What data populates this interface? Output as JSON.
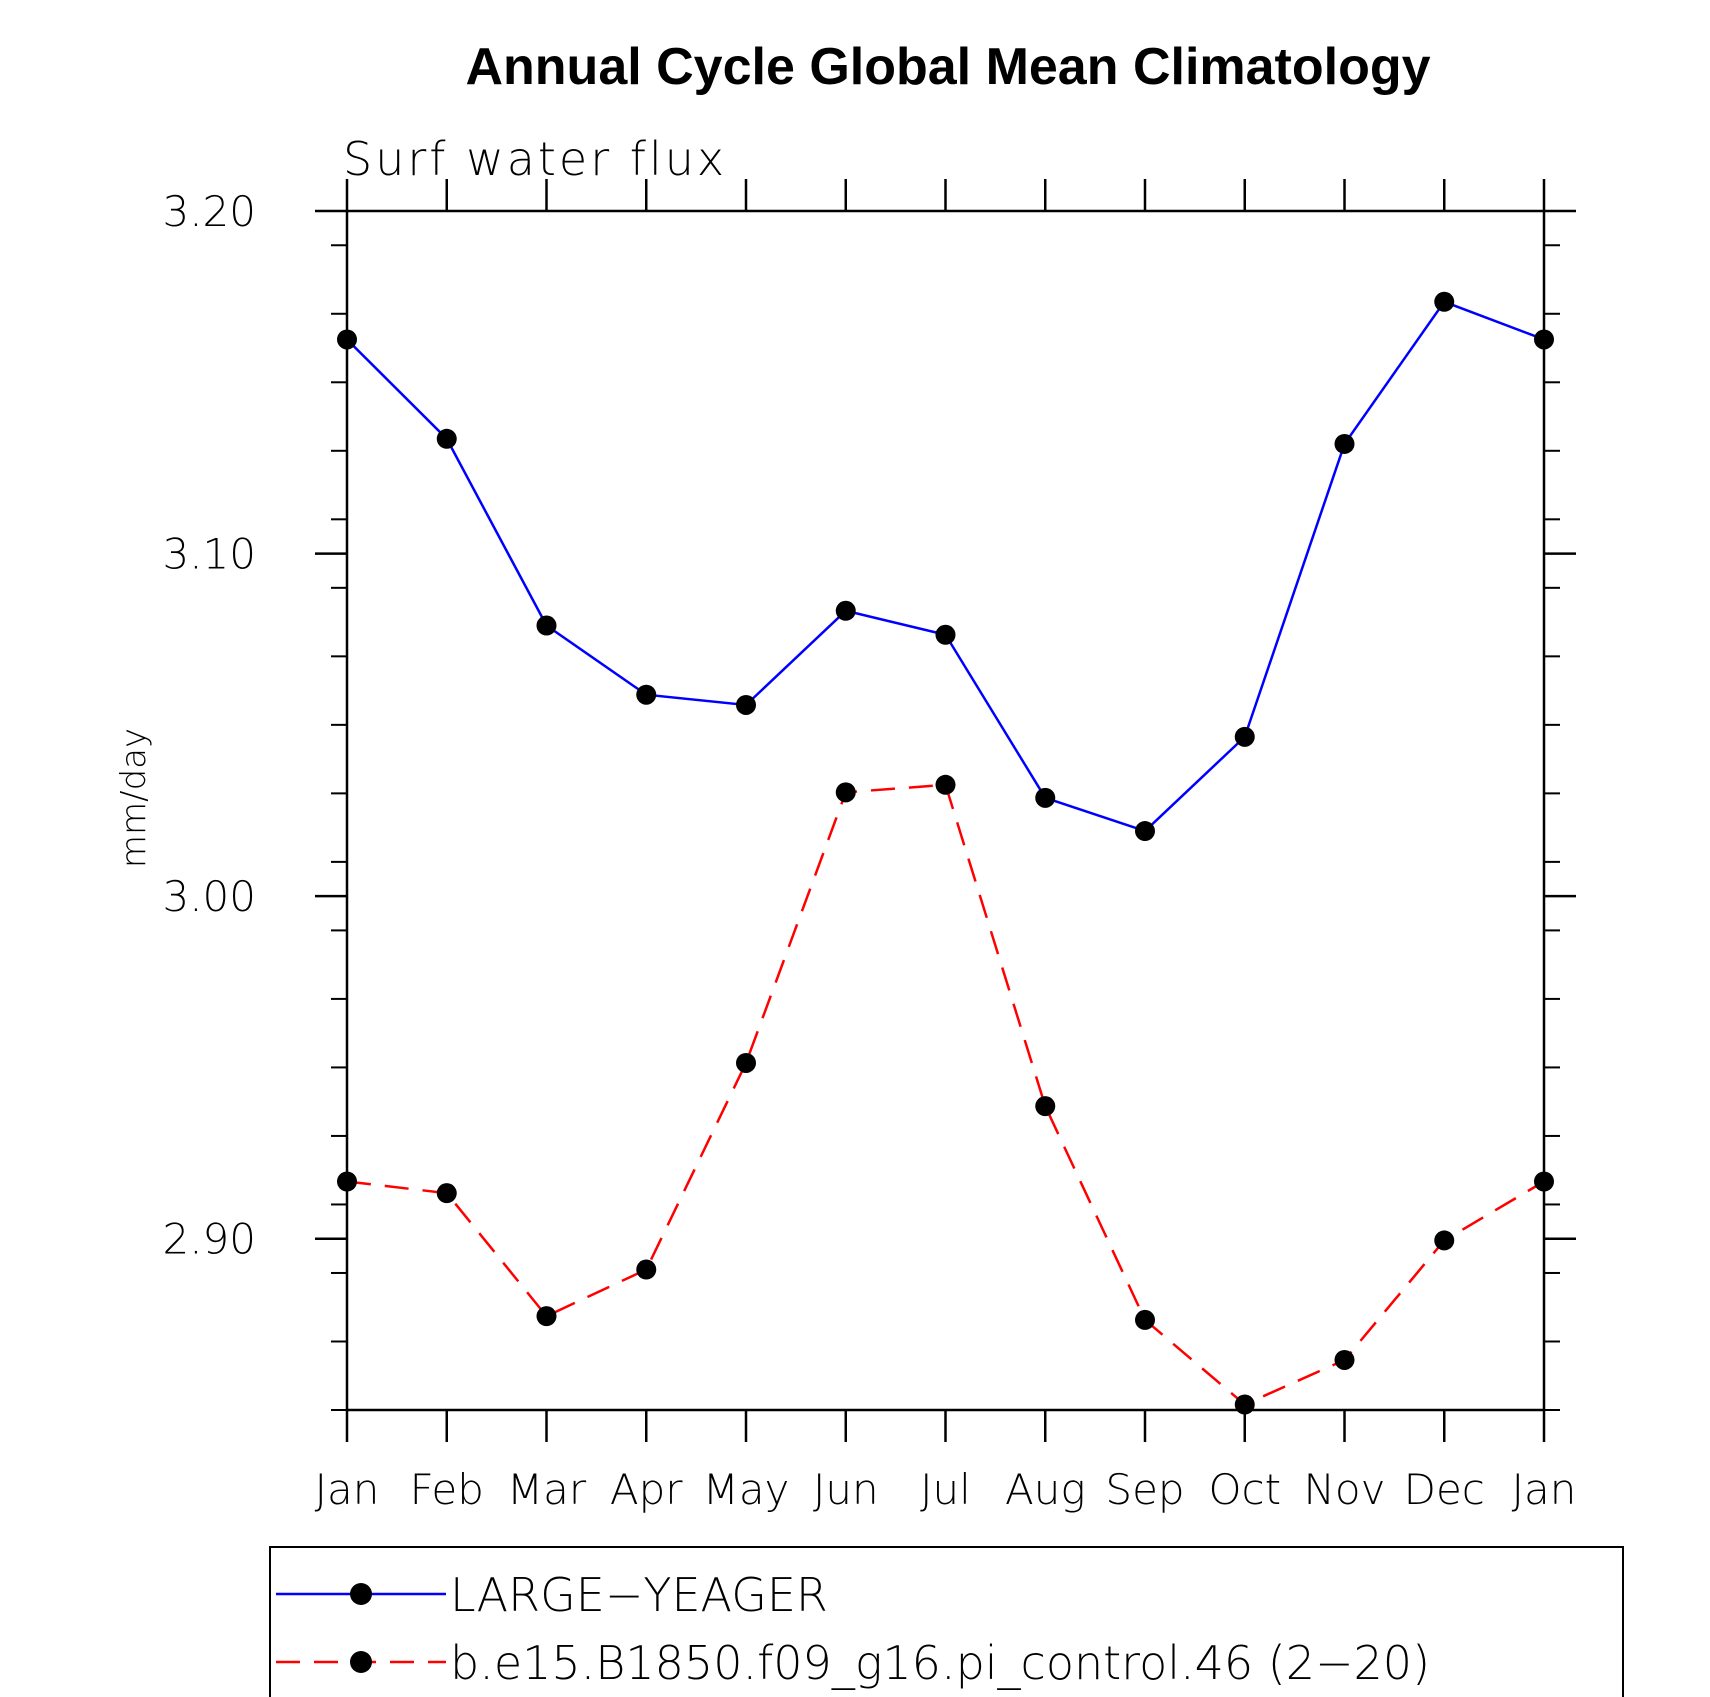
{
  "chart_data": {
    "type": "line",
    "title": "Annual Cycle Global Mean Climatology",
    "subtitle": "Surf water flux",
    "xlabel": "",
    "ylabel": "mm/day",
    "categories": [
      "Jan",
      "Feb",
      "Mar",
      "Apr",
      "May",
      "Jun",
      "Jul",
      "Aug",
      "Sep",
      "Oct",
      "Nov",
      "Dec",
      "Jan"
    ],
    "ylim": [
      2.85,
      3.2
    ],
    "yticks": [
      2.9,
      3.0,
      3.1,
      3.2
    ],
    "ytick_labels": [
      "2.90",
      "3.00",
      "3.10",
      "3.20"
    ],
    "series": [
      {
        "name": "LARGE−YEAGER",
        "color": "#0000ff",
        "style": "solid",
        "values": [
          3.1625,
          3.1335,
          3.079,
          3.0588,
          3.0558,
          3.0833,
          3.0763,
          3.0287,
          3.019,
          3.0465,
          3.132,
          3.1735,
          3.1625
        ]
      },
      {
        "name": "b.e15.B1850.f09_g16.pi_control.46 (2−20)",
        "color": "#ff0000",
        "style": "dashed",
        "values": [
          2.9167,
          2.9133,
          2.8774,
          2.891,
          2.9513,
          3.0303,
          3.0325,
          2.9387,
          2.8763,
          2.8516,
          2.8646,
          2.8995,
          2.9167
        ]
      }
    ],
    "legend_position": "bottom"
  }
}
